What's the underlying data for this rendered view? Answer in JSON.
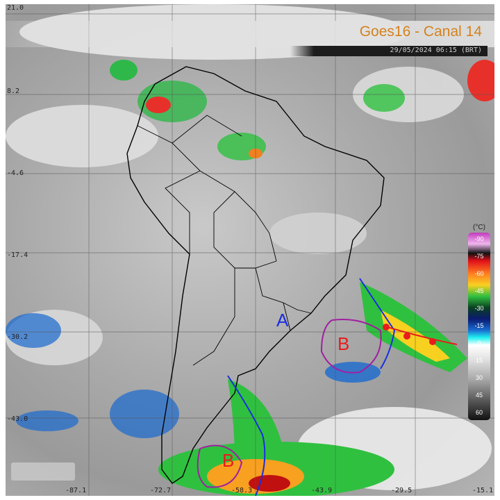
{
  "header": {
    "title": "Goes16 - Canal 14",
    "datetime": "29/05/2024 06:15 (BRT)"
  },
  "grid": {
    "latitudes": [
      "21.0",
      "8.2",
      "-4.6",
      "-17.4",
      "-30.2",
      "-43.0"
    ],
    "longitudes": [
      "-87.1",
      "-72.7",
      "-58.3",
      "-43.9",
      "-29.5",
      "-15.1"
    ]
  },
  "legend": {
    "unit": "(°C)",
    "values": [
      "-90",
      "-75",
      "-60",
      "-45",
      "-30",
      "-15",
      "0",
      "15",
      "30",
      "45",
      "60"
    ]
  },
  "systems": [
    {
      "label": "A",
      "type": "high pressure",
      "color": "#1a2ee0"
    },
    {
      "label": "B",
      "type": "low pressure",
      "color": "#e81c1c"
    },
    {
      "label": "B",
      "type": "low pressure",
      "color": "#e81c1c"
    }
  ],
  "colors": {
    "cold_front": "#1a2ee0",
    "warm_front": "#e81c1c",
    "occluded": "#a020a0",
    "title": "#d4821e"
  }
}
